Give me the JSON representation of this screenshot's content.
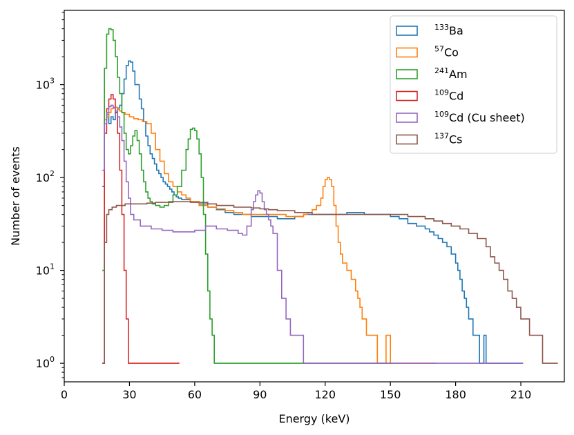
{
  "chart_data": {
    "type": "line",
    "style": "step-histogram",
    "title": "",
    "xlabel": "Energy (keV)",
    "ylabel": "Number of events",
    "xlim": [
      0,
      230
    ],
    "ylim_log10": [
      -0.2,
      3.8
    ],
    "yscale": "log",
    "x_ticks": [
      0,
      30,
      60,
      90,
      120,
      150,
      180,
      210
    ],
    "y_ticks": [
      {
        "base": "10",
        "exp": "0",
        "value": 1
      },
      {
        "base": "10",
        "exp": "1",
        "value": 10
      },
      {
        "base": "10",
        "exp": "2",
        "value": 100
      },
      {
        "base": "10",
        "exp": "3",
        "value": 1000
      }
    ],
    "grid": false,
    "legend_position": "top-right",
    "series": [
      {
        "sup": "133",
        "name": "Ba",
        "color": "#1f77b4",
        "x": [
          17.5,
          18.5,
          19.5,
          20.5,
          21.5,
          22.5,
          23.5,
          24.5,
          25.5,
          26.5,
          27.5,
          28.5,
          29.5,
          30.5,
          31.5,
          32.5,
          33.5,
          34.5,
          35.5,
          36.5,
          37.5,
          38.5,
          39.5,
          40.5,
          41.5,
          42.5,
          43.5,
          44.5,
          45.5,
          46.5,
          47.5,
          48.5,
          49.5,
          50.5,
          51.5,
          52.5,
          54,
          58,
          62,
          66,
          70,
          74,
          78,
          82,
          86,
          90,
          94,
          98,
          102,
          106,
          110,
          114,
          118,
          122,
          126,
          130,
          134,
          138,
          142,
          146,
          150,
          154,
          158,
          162,
          166,
          168,
          170,
          172,
          174,
          176,
          178,
          180,
          181,
          182,
          183,
          184,
          185,
          186,
          187,
          188,
          189,
          190,
          191,
          192,
          193,
          194,
          195,
          196,
          198,
          200,
          202,
          204,
          206,
          208,
          210
        ],
        "y": [
          80,
          420,
          480,
          380,
          450,
          420,
          500,
          560,
          600,
          800,
          1150,
          1600,
          1800,
          1750,
          1400,
          1000,
          1000,
          700,
          550,
          400,
          280,
          220,
          180,
          160,
          140,
          120,
          110,
          100,
          90,
          85,
          80,
          75,
          70,
          65,
          62,
          60,
          58,
          55,
          52,
          48,
          45,
          42,
          40,
          40,
          38,
          38,
          38,
          36,
          36,
          38,
          40,
          40,
          40,
          40,
          40,
          42,
          42,
          40,
          40,
          40,
          38,
          36,
          32,
          30,
          28,
          26,
          24,
          22,
          20,
          18,
          15,
          12,
          10,
          8,
          6,
          5,
          4,
          3,
          3,
          2,
          2,
          2,
          1,
          1,
          2,
          1,
          1,
          1,
          1,
          1,
          1,
          1,
          1,
          1,
          1
        ]
      },
      {
        "sup": "57",
        "name": "Co",
        "color": "#ff7f0e",
        "x": [
          18.5,
          19.5,
          20.5,
          21.5,
          22.5,
          23.5,
          24.5,
          25.5,
          26.5,
          28,
          30,
          32,
          34,
          36,
          38,
          40,
          42,
          44,
          46,
          48,
          50,
          52,
          54,
          56,
          58,
          62,
          66,
          70,
          74,
          78,
          82,
          86,
          90,
          94,
          98,
          102,
          106,
          110,
          112,
          114,
          116,
          118,
          119,
          120,
          121,
          122,
          123,
          124,
          125,
          126,
          127,
          128,
          130,
          132,
          134,
          135,
          136,
          137,
          138,
          139,
          140,
          142,
          144,
          146,
          148,
          150,
          155,
          160,
          165,
          170
        ],
        "y": [
          420,
          450,
          500,
          550,
          560,
          570,
          540,
          520,
          500,
          480,
          450,
          430,
          420,
          400,
          380,
          300,
          200,
          150,
          110,
          90,
          80,
          70,
          65,
          60,
          55,
          50,
          48,
          46,
          44,
          42,
          40,
          40,
          40,
          40,
          40,
          38,
          38,
          40,
          42,
          45,
          50,
          60,
          80,
          95,
          100,
          95,
          80,
          50,
          30,
          20,
          15,
          12,
          10,
          8,
          6,
          5,
          4,
          3,
          3,
          2,
          2,
          2,
          1,
          1,
          2,
          1,
          1,
          1,
          1,
          1
        ]
      },
      {
        "sup": "241",
        "name": "Am",
        "color": "#2ca02c",
        "x": [
          17.5,
          18.5,
          19.5,
          20.5,
          21.5,
          22.5,
          23.5,
          24.5,
          25.5,
          26.5,
          27.5,
          28.5,
          29.5,
          30.5,
          31.5,
          32.5,
          33.5,
          34.5,
          35.5,
          36.5,
          37.5,
          38.5,
          39.5,
          40.5,
          42,
          44,
          46,
          48,
          50,
          52,
          54,
          56,
          57,
          58,
          59,
          60,
          61,
          62,
          63,
          64,
          65,
          66,
          67,
          68,
          69,
          70,
          72,
          75,
          80,
          85,
          90,
          95,
          100,
          105,
          110,
          120,
          130,
          140,
          150
        ],
        "y": [
          10,
          1500,
          3500,
          4000,
          3900,
          3000,
          2000,
          1200,
          800,
          500,
          300,
          200,
          180,
          220,
          280,
          320,
          250,
          180,
          120,
          90,
          70,
          60,
          55,
          52,
          50,
          48,
          50,
          55,
          65,
          80,
          120,
          200,
          260,
          330,
          340,
          320,
          260,
          180,
          100,
          40,
          15,
          6,
          3,
          2,
          1,
          1,
          1,
          1,
          1,
          1,
          1,
          1,
          1,
          1,
          1,
          1,
          1,
          1,
          1
        ]
      },
      {
        "sup": "109",
        "name": "Cd",
        "color": "#d62728",
        "x": [
          17.5,
          18.5,
          19.5,
          20.5,
          21.5,
          22.5,
          23.5,
          24.5,
          25.5,
          26.5,
          27.5,
          28.5,
          29.5,
          30.5,
          31,
          33,
          36,
          40,
          44,
          48,
          52
        ],
        "y": [
          1,
          300,
          550,
          700,
          780,
          700,
          500,
          300,
          120,
          40,
          10,
          3,
          1,
          1,
          1,
          1,
          1,
          1,
          1,
          1,
          1
        ]
      },
      {
        "sup": "109",
        "name": "Cd (Cu sheet)",
        "color": "#9467bd",
        "x": [
          17.5,
          18.5,
          19.5,
          20.5,
          21.5,
          22.5,
          23.5,
          24.5,
          25.5,
          26.5,
          27.5,
          28.5,
          29.5,
          30.5,
          32,
          35,
          40,
          45,
          50,
          55,
          60,
          65,
          70,
          75,
          80,
          82,
          84,
          86,
          87,
          88,
          89,
          90,
          91,
          92,
          93,
          94,
          95,
          96,
          98,
          100,
          102,
          104,
          106,
          110,
          115,
          120,
          130,
          140,
          150,
          160,
          170,
          180,
          190,
          200,
          210
        ],
        "y": [
          120,
          380,
          500,
          580,
          600,
          570,
          520,
          450,
          350,
          250,
          150,
          90,
          60,
          40,
          35,
          30,
          28,
          27,
          26,
          26,
          27,
          30,
          28,
          27,
          25,
          24,
          30,
          45,
          55,
          65,
          72,
          68,
          55,
          45,
          40,
          35,
          30,
          25,
          10,
          5,
          3,
          2,
          2,
          1,
          1,
          1,
          1,
          1,
          1,
          1,
          1,
          1,
          1,
          1,
          1
        ]
      },
      {
        "sup": "137",
        "name": "Cs",
        "color": "#8c564b",
        "x": [
          17.5,
          18.5,
          19.5,
          20.5,
          22,
          24,
          26,
          28,
          30,
          34,
          38,
          42,
          46,
          50,
          54,
          58,
          62,
          66,
          70,
          74,
          78,
          82,
          86,
          90,
          94,
          98,
          102,
          106,
          110,
          114,
          118,
          122,
          126,
          130,
          134,
          138,
          142,
          146,
          150,
          154,
          158,
          162,
          166,
          170,
          174,
          178,
          182,
          186,
          190,
          194,
          196,
          198,
          200,
          202,
          204,
          206,
          208,
          210,
          212,
          214,
          216,
          218,
          220,
          222,
          224,
          226
        ],
        "y": [
          1,
          20,
          40,
          45,
          48,
          50,
          50,
          52,
          52,
          52,
          53,
          54,
          54,
          55,
          55,
          54,
          54,
          52,
          50,
          50,
          48,
          48,
          47,
          46,
          45,
          44,
          44,
          42,
          42,
          40,
          40,
          40,
          40,
          40,
          40,
          40,
          40,
          40,
          40,
          40,
          38,
          38,
          36,
          34,
          32,
          30,
          28,
          25,
          22,
          18,
          14,
          12,
          10,
          8,
          6,
          5,
          4,
          3,
          3,
          2,
          2,
          2,
          1,
          1,
          1,
          1
        ]
      }
    ]
  }
}
